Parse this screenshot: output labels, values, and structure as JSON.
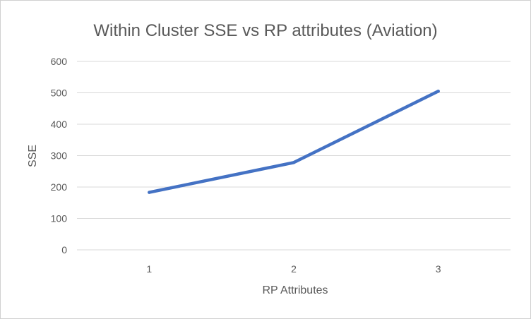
{
  "chart_data": {
    "type": "line",
    "title": "Within Cluster SSE vs RP attributes (Aviation)",
    "xlabel": "RP Attributes",
    "ylabel": "SSE",
    "categories": [
      "1",
      "2",
      "3"
    ],
    "series": [
      {
        "values": [
          183,
          278,
          505
        ],
        "color": "#4472c4"
      }
    ],
    "ylim": [
      0,
      600
    ],
    "yticks": [
      0,
      100,
      200,
      300,
      400,
      500,
      600
    ],
    "grid": true,
    "legend": "none"
  }
}
